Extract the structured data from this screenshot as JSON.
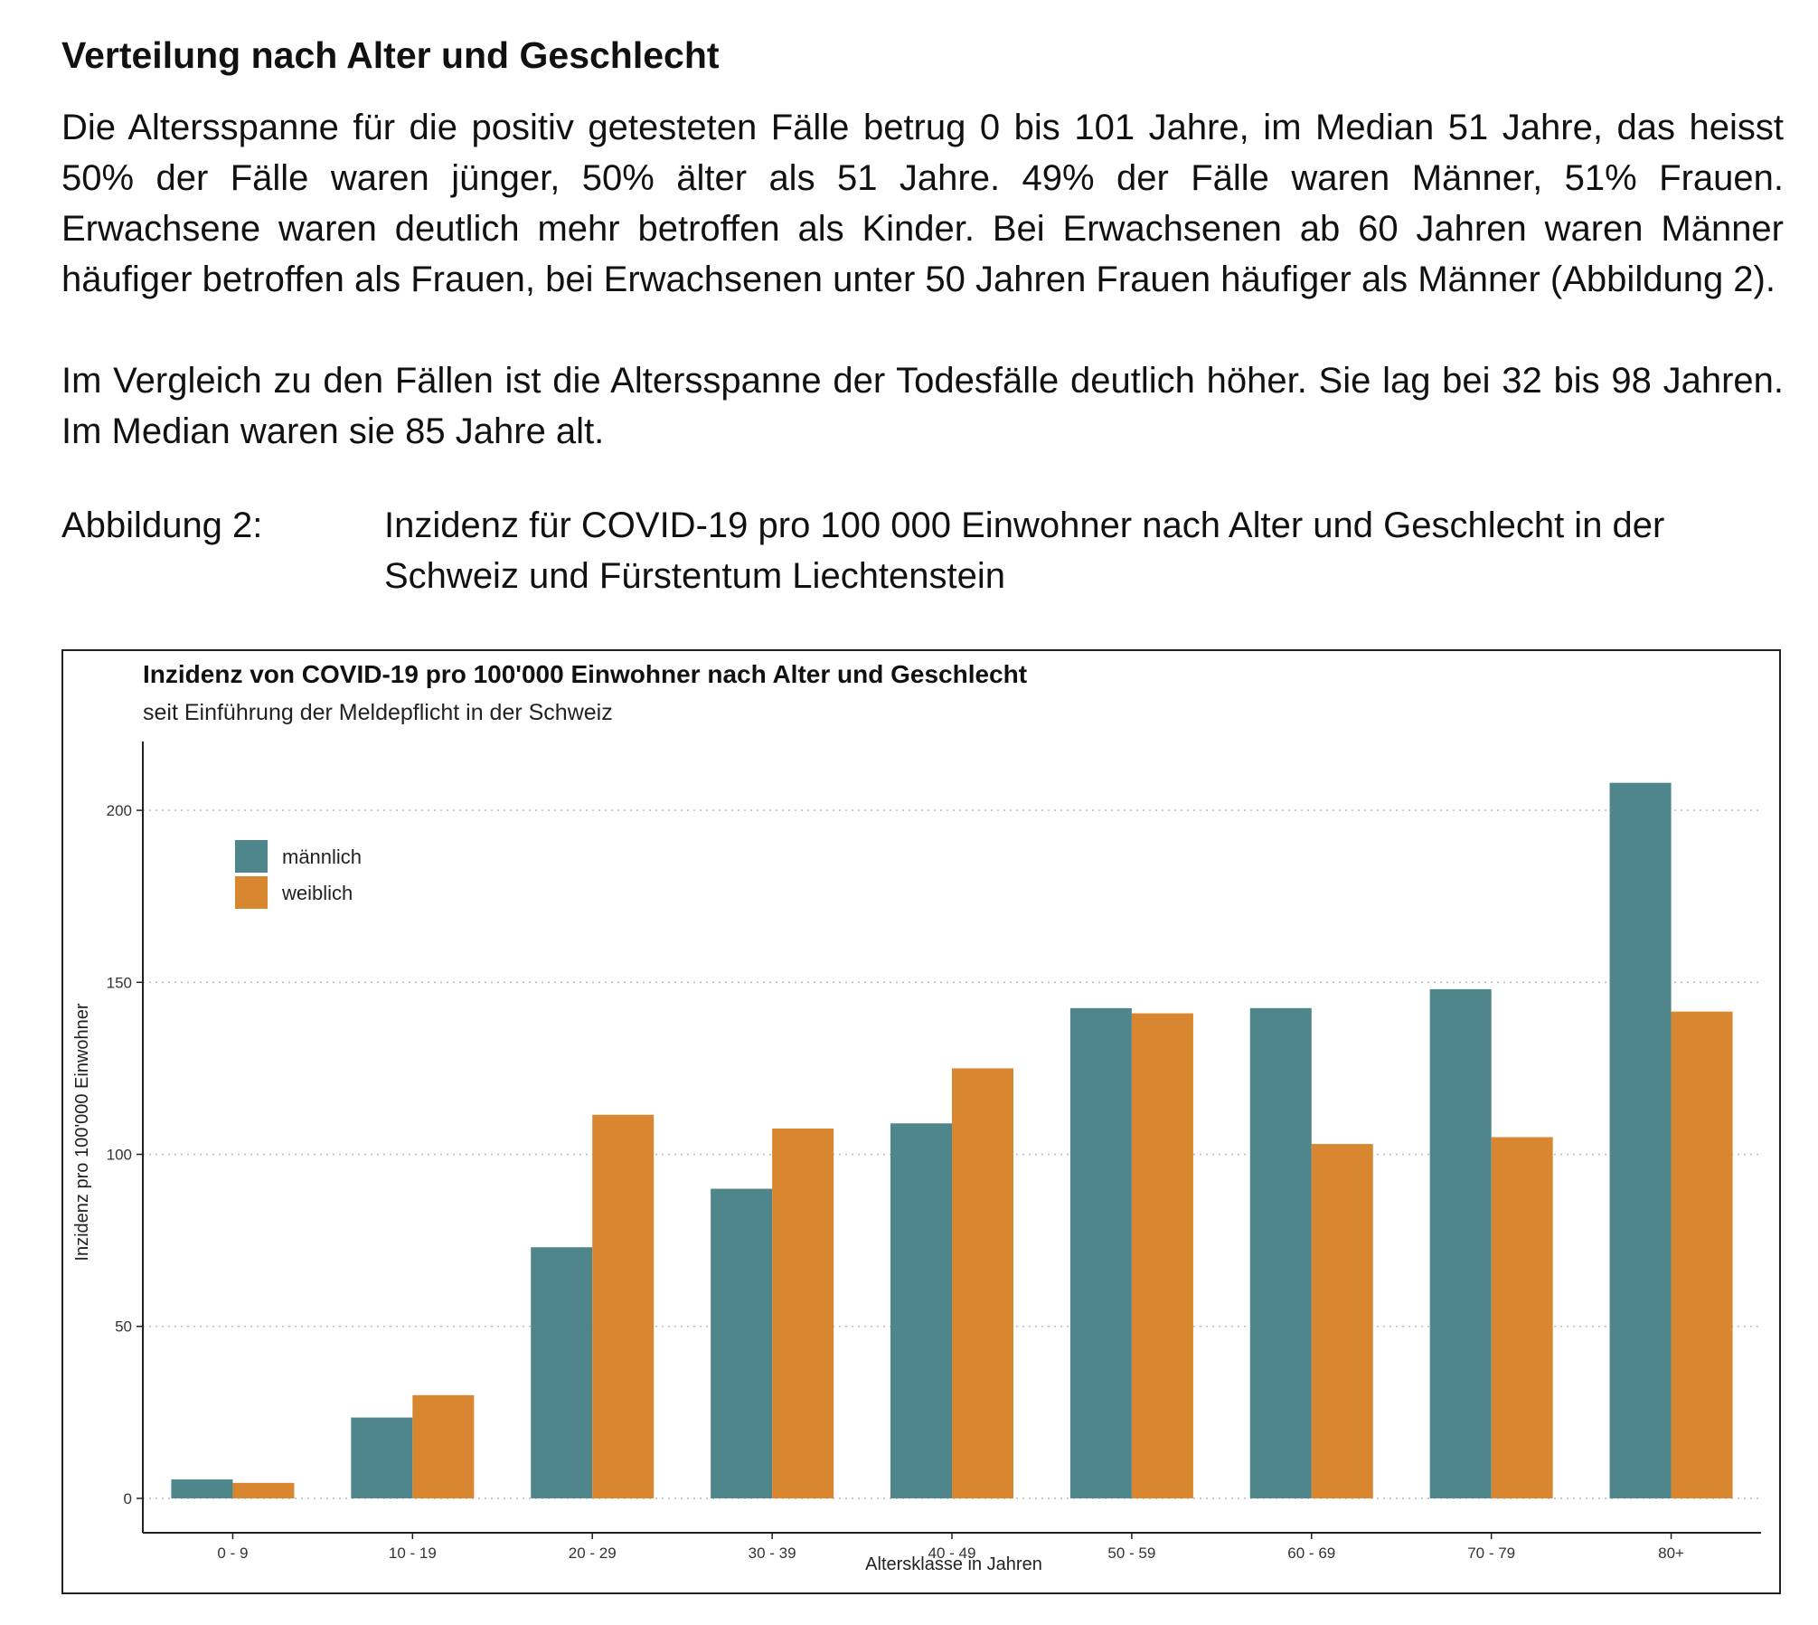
{
  "section": {
    "heading": "Verteilung nach Alter und Geschlecht",
    "paragraph1": "Die Altersspanne für die positiv getesteten Fälle betrug 0 bis 101 Jahre, im Median 51 Jahre, das heisst 50% der Fälle waren jünger, 50% älter als 51 Jahre. 49% der Fälle waren Männer, 51% Frauen. Erwachsene waren deutlich mehr betroffen als Kinder. Bei Erwachsenen ab 60 Jahren waren Männer häufiger betroffen als Frauen, bei Erwachsenen unter 50 Jahren Frauen häufiger als Männer (Abbildung 2).",
    "paragraph2": "Im Vergleich zu den Fällen ist die Altersspanne der Todesfälle deutlich höher. Sie lag bei 32 bis 98 Jahren. Im Median waren sie 85 Jahre alt."
  },
  "figure": {
    "label": "Abbildung 2:",
    "caption": "Inzidenz für COVID-19 pro 100 000 Einwohner nach Alter und Geschlecht in der Schweiz und Fürstentum Liechtenstein"
  },
  "chart_data": {
    "type": "bar",
    "title": "Inzidenz von COVID-19 pro 100'000 Einwohner nach Alter und Geschlecht",
    "subtitle": "seit Einführung der Meldepflicht in der Schweiz",
    "xlabel": "Altersklasse in Jahren",
    "ylabel": "Inzidenz pro 100'000 Einwohner",
    "categories": [
      "0 - 9",
      "10 - 19",
      "20 - 29",
      "30 - 39",
      "40 - 49",
      "50 - 59",
      "60 - 69",
      "70 - 79",
      "80+"
    ],
    "series": [
      {
        "name": "männlich",
        "color": "#4e868c",
        "values": [
          5.5,
          23.5,
          73,
          90,
          109,
          142.5,
          142.5,
          148,
          208
        ]
      },
      {
        "name": "weiblich",
        "color": "#d88630",
        "values": [
          4.5,
          30,
          111.5,
          107.5,
          125,
          141,
          103,
          105,
          141.5
        ]
      }
    ],
    "yticks": [
      0,
      50,
      100,
      150,
      200
    ],
    "ylim": [
      -10,
      220
    ],
    "grid": "horizontal dotted",
    "legend": "top-left"
  }
}
